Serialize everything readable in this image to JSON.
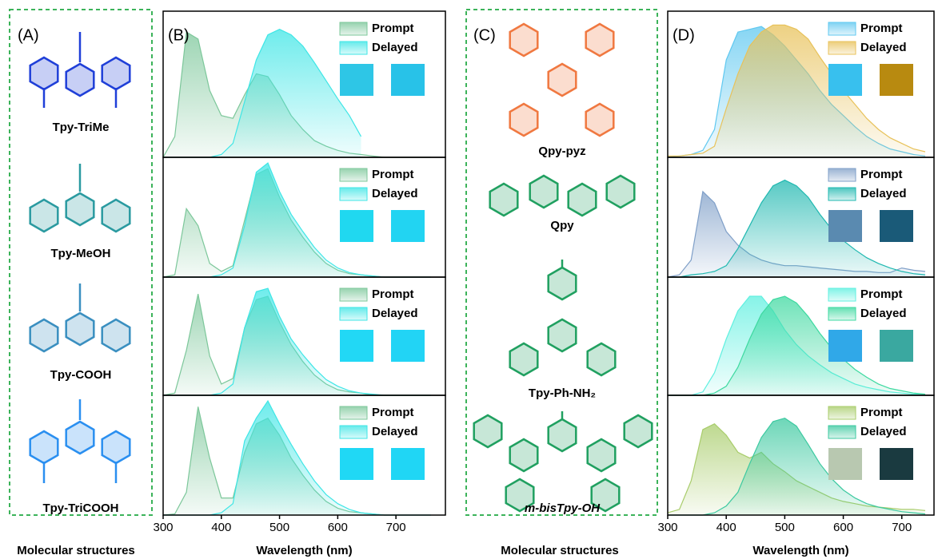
{
  "structures": [
    {
      "label": "(A)",
      "molecules": [
        "Tpy-TriMe",
        "Tpy-MeOH",
        "Tpy-COOH",
        "Tpy-TriCOOH"
      ],
      "caption": "Molecular structures"
    },
    {
      "label": "(C)",
      "molecules": [
        "Qpy-pyz",
        "Qpy",
        "Tpy-Ph-NH₂",
        "m-bisTpy-OH"
      ],
      "caption": "Molecular structures"
    }
  ],
  "chart_data": [
    {
      "type": "area",
      "panel": "(B)",
      "x": [
        300,
        320,
        340,
        360,
        380,
        400,
        420,
        440,
        460,
        480,
        500,
        520,
        540,
        560,
        580,
        600,
        620,
        640,
        660,
        680,
        700,
        720,
        740,
        760
      ],
      "xlim": [
        300,
        785
      ],
      "ylim": [
        0,
        1.05
      ],
      "series": [
        {
          "name": "Prompt",
          "color": "#7cc79a",
          "values": [
            0,
            0.15,
            0.9,
            0.85,
            0.48,
            0.3,
            0.28,
            0.45,
            0.6,
            0.58,
            0.45,
            0.3,
            0.2,
            0.12,
            0.08,
            0.05,
            0.03,
            0.02,
            0.01,
            0,
            0,
            0,
            0,
            0
          ]
        },
        {
          "name": "Delayed",
          "color": "#3ee6e6",
          "values": [
            0,
            0,
            0,
            0,
            0,
            0.02,
            0.1,
            0.4,
            0.7,
            0.88,
            0.92,
            0.88,
            0.8,
            0.68,
            0.55,
            0.42,
            0.3,
            0.15,
            null,
            null,
            null,
            null,
            null,
            null
          ]
        }
      ]
    },
    {
      "type": "area",
      "x": [
        300,
        320,
        340,
        360,
        380,
        400,
        420,
        440,
        460,
        480,
        500,
        520,
        540,
        560,
        580,
        600,
        620,
        640,
        660,
        680,
        700,
        720,
        740,
        760
      ],
      "xlim": [
        300,
        785
      ],
      "ylim": [
        0,
        1.05
      ],
      "series": [
        {
          "name": "Prompt",
          "color": "#7cc79a",
          "values": [
            0,
            0.02,
            0.6,
            0.45,
            0.12,
            0.05,
            0.1,
            0.5,
            0.9,
            0.95,
            0.7,
            0.5,
            0.35,
            0.22,
            0.12,
            0.06,
            0.03,
            0.02,
            0.01,
            0,
            0,
            0,
            0,
            0
          ]
        },
        {
          "name": "Delayed",
          "color": "#3ee6e6",
          "values": [
            0,
            0,
            0,
            0,
            0,
            0.02,
            0.08,
            0.45,
            0.92,
            1.0,
            0.75,
            0.55,
            0.4,
            0.26,
            0.15,
            0.08,
            0.04,
            0.02,
            0.01,
            0,
            0,
            0,
            0,
            0
          ]
        }
      ]
    },
    {
      "type": "area",
      "x": [
        300,
        320,
        340,
        360,
        380,
        400,
        420,
        440,
        460,
        480,
        500,
        520,
        540,
        560,
        580,
        600,
        620,
        640,
        660,
        680,
        700,
        720,
        740,
        760
      ],
      "xlim": [
        300,
        785
      ],
      "ylim": [
        0,
        1.05
      ],
      "series": [
        {
          "name": "Prompt",
          "color": "#7cc79a",
          "values": [
            0,
            0.02,
            0.4,
            0.9,
            0.35,
            0.1,
            0.15,
            0.6,
            0.85,
            0.88,
            0.65,
            0.45,
            0.3,
            0.18,
            0.1,
            0.05,
            0.03,
            0.02,
            0,
            0,
            0,
            0,
            0,
            0
          ]
        },
        {
          "name": "Delayed",
          "color": "#3ee6e6",
          "values": [
            0,
            0,
            0,
            0,
            0,
            0.02,
            0.1,
            0.6,
            0.92,
            0.95,
            0.7,
            0.5,
            0.36,
            0.24,
            0.14,
            0.08,
            0.04,
            0.02,
            0.01,
            0,
            0,
            0,
            0,
            0
          ]
        }
      ]
    },
    {
      "type": "area",
      "x": [
        300,
        320,
        340,
        360,
        380,
        400,
        420,
        440,
        460,
        480,
        500,
        520,
        540,
        560,
        580,
        600,
        620,
        640,
        660,
        680,
        700,
        720,
        740,
        760
      ],
      "xlim": [
        300,
        785
      ],
      "ylim": [
        0,
        1.05
      ],
      "xticks": [
        300,
        400,
        500,
        600,
        700
      ],
      "xlabel": "Wavelength (nm)",
      "series": [
        {
          "name": "Prompt",
          "color": "#7cc79a",
          "values": [
            0,
            0.01,
            0.2,
            0.95,
            0.5,
            0.15,
            0.15,
            0.55,
            0.8,
            0.85,
            0.7,
            0.5,
            0.35,
            0.22,
            0.12,
            0.06,
            0.03,
            0.02,
            0.01,
            0,
            0,
            0,
            0,
            0
          ]
        },
        {
          "name": "Delayed",
          "color": "#3ee6e6",
          "values": [
            0,
            0,
            0,
            0,
            0,
            0.02,
            0.1,
            0.65,
            0.85,
            1.0,
            0.8,
            0.62,
            0.45,
            0.3,
            0.18,
            0.1,
            0.05,
            0.02,
            0.01,
            0,
            0,
            0,
            0,
            0
          ]
        }
      ]
    },
    {
      "type": "area",
      "panel": "(D)",
      "x": [
        300,
        320,
        340,
        360,
        380,
        400,
        420,
        440,
        460,
        480,
        500,
        520,
        540,
        560,
        580,
        600,
        620,
        640,
        660,
        680,
        700,
        720,
        740
      ],
      "xlim": [
        300,
        755
      ],
      "ylim": [
        0,
        1.05
      ],
      "series": [
        {
          "name": "Prompt",
          "color": "#5fc8f0",
          "values": [
            0,
            0.01,
            0.02,
            0.05,
            0.2,
            0.7,
            0.9,
            0.92,
            0.94,
            0.88,
            0.8,
            0.7,
            0.6,
            0.48,
            0.38,
            0.3,
            0.22,
            0.15,
            0.1,
            0.06,
            0.04,
            0.02,
            0.01
          ]
        },
        {
          "name": "Delayed",
          "color": "#e8c25a",
          "values": [
            0.01,
            0.01,
            0.02,
            0.03,
            0.08,
            0.35,
            0.6,
            0.8,
            0.9,
            0.95,
            0.95,
            0.92,
            0.85,
            0.72,
            0.6,
            0.48,
            0.38,
            0.28,
            0.2,
            0.14,
            0.1,
            0.06,
            0.04
          ]
        }
      ]
    },
    {
      "type": "area",
      "x": [
        300,
        320,
        340,
        360,
        380,
        400,
        420,
        440,
        460,
        480,
        500,
        520,
        540,
        560,
        580,
        600,
        620,
        640,
        660,
        680,
        700,
        720,
        740
      ],
      "xlim": [
        300,
        755
      ],
      "ylim": [
        0,
        1.05
      ],
      "series": [
        {
          "name": "Prompt",
          "color": "#7f9fc8",
          "values": [
            0,
            0.02,
            0.15,
            0.75,
            0.65,
            0.4,
            0.28,
            0.2,
            0.15,
            0.12,
            0.1,
            0.1,
            0.09,
            0.08,
            0.07,
            0.06,
            0.05,
            0.05,
            0.04,
            0.04,
            0.08,
            0.06,
            0.05
          ]
        },
        {
          "name": "Delayed",
          "color": "#1fb8b0",
          "values": [
            0,
            0,
            0.02,
            0.03,
            0.05,
            0.1,
            0.25,
            0.45,
            0.65,
            0.8,
            0.85,
            0.8,
            0.7,
            0.55,
            0.42,
            0.32,
            0.24,
            0.17,
            0.12,
            0.08,
            0.05,
            0.03,
            0.02
          ]
        }
      ]
    },
    {
      "type": "area",
      "x": [
        300,
        320,
        340,
        360,
        380,
        400,
        420,
        440,
        460,
        480,
        500,
        520,
        540,
        560,
        580,
        600,
        620,
        640,
        660,
        680,
        700,
        720,
        740
      ],
      "xlim": [
        300,
        755
      ],
      "ylim": [
        0,
        1.05
      ],
      "series": [
        {
          "name": "Prompt",
          "color": "#5ff0e0",
          "values": [
            0,
            0,
            0,
            0.03,
            0.2,
            0.5,
            0.75,
            0.88,
            0.88,
            0.75,
            0.58,
            0.45,
            0.35,
            0.27,
            0.2,
            0.15,
            0.1,
            0.07,
            0.05,
            0.03,
            0.02,
            0.01,
            0.01
          ]
        },
        {
          "name": "Delayed",
          "color": "#3dd9a0",
          "values": [
            0,
            0,
            0,
            0,
            0.02,
            0.08,
            0.25,
            0.5,
            0.72,
            0.85,
            0.88,
            0.82,
            0.7,
            0.55,
            0.42,
            0.32,
            0.23,
            0.16,
            0.1,
            0.06,
            0.04,
            0.02,
            0.01
          ]
        }
      ]
    },
    {
      "type": "area",
      "x": [
        300,
        320,
        340,
        360,
        380,
        400,
        420,
        440,
        460,
        480,
        500,
        520,
        540,
        560,
        580,
        600,
        620,
        640,
        660,
        680,
        700,
        720,
        740
      ],
      "xlim": [
        300,
        755
      ],
      "ylim": [
        0,
        1.05
      ],
      "xticks": [
        300,
        400,
        500,
        600,
        700
      ],
      "xlabel": "Wavelength (nm)",
      "series": [
        {
          "name": "Prompt",
          "color": "#a8cc6a",
          "values": [
            0.02,
            0.05,
            0.3,
            0.75,
            0.8,
            0.7,
            0.55,
            0.5,
            0.55,
            0.45,
            0.38,
            0.3,
            0.25,
            0.2,
            0.15,
            0.12,
            0.1,
            0.08,
            0.07,
            0.06,
            0.05,
            0.05,
            0.04
          ]
        },
        {
          "name": "Delayed",
          "color": "#3cc9a0",
          "values": [
            0,
            0,
            0,
            0,
            0.02,
            0.08,
            0.2,
            0.45,
            0.68,
            0.82,
            0.85,
            0.78,
            0.62,
            0.45,
            0.32,
            0.22,
            0.15,
            0.1,
            0.07,
            0.05,
            0.03,
            0.02,
            0.01
          ]
        }
      ]
    }
  ]
}
